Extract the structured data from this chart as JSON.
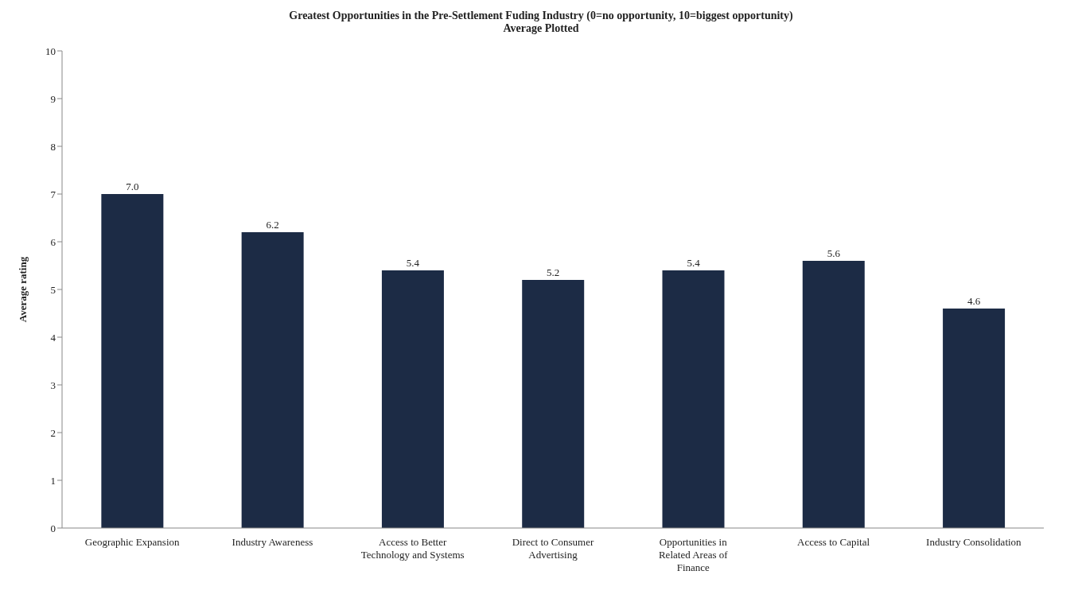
{
  "chart_data": {
    "type": "bar",
    "title": "Greatest Opportunities in the Pre-Settlement Fuding Industry (0=no opportunity, 10=biggest opportunity)",
    "subtitle": "Average Plotted",
    "ylabel": "Average rating",
    "categories": [
      "Geographic Expansion",
      "Industry Awareness",
      "Access to Better Technology and Systems",
      "Direct to Consumer Advertising",
      "Opportunities in Related Areas of Finance",
      "Access to Capital",
      "Industry Consolidation"
    ],
    "values": [
      7.0,
      6.2,
      5.4,
      5.2,
      5.4,
      5.6,
      4.6
    ],
    "value_labels": [
      "7.0",
      "6.2",
      "5.4",
      "5.2",
      "5.4",
      "5.6",
      "4.6"
    ],
    "color": "#1c2b45",
    "ylim": [
      0,
      10
    ],
    "yticks": [
      0,
      1,
      2,
      3,
      4,
      5,
      6,
      7,
      8,
      9,
      10
    ],
    "grid": false,
    "legend": false
  }
}
